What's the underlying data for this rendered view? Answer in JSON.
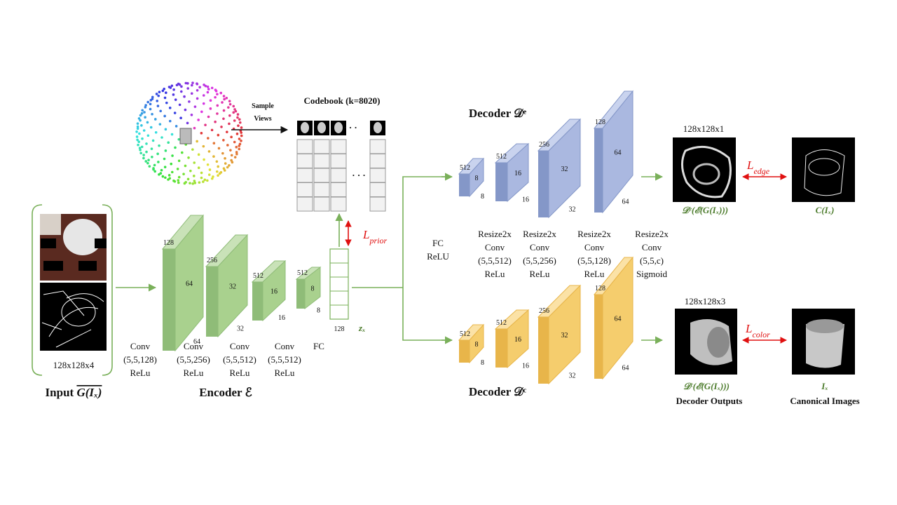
{
  "sampling": {
    "arrow_label": [
      "Sample",
      "Views"
    ]
  },
  "codebook": {
    "title": "Codebook (k=8020)",
    "ellipsis_views": "· · ·",
    "ellipsis_grid": "· · ·"
  },
  "input": {
    "size": "128x128x4",
    "label": "Input",
    "symbol": "G(Iₓ)"
  },
  "encoder": {
    "title": "Encoder ℰ",
    "blocks": [
      {
        "dims": [
          128,
          64,
          64
        ],
        "layer": [
          "Conv",
          "(5,5,128)",
          "ReLu"
        ]
      },
      {
        "dims": [
          256,
          32,
          32
        ],
        "layer": [
          "Conv",
          "(5,5,256)",
          "ReLu"
        ]
      },
      {
        "dims": [
          512,
          16,
          16
        ],
        "layer": [
          "Conv",
          "(5,5,512)",
          "ReLu"
        ]
      },
      {
        "dims": [
          512,
          8,
          8
        ],
        "layer": [
          "Conv",
          "(5,5,512)",
          "ReLu"
        ]
      }
    ],
    "fc": {
      "dim": 128,
      "layer": "FC",
      "latent": "zₓ"
    }
  },
  "prior_loss": {
    "symbol": "L",
    "subscript": "prior"
  },
  "fc_relu": [
    "FC",
    "ReLU"
  ],
  "decoder_layers": [
    [
      "Resize2x",
      "Conv",
      "(5,5,512)",
      "ReLu"
    ],
    [
      "Resize2x",
      "Conv",
      "(5,5,256)",
      "ReLu"
    ],
    [
      "Resize2x",
      "Conv",
      "(5,5,128)",
      "ReLu"
    ],
    [
      "Resize2x",
      "Conv",
      "(5,5,c)",
      "Sigmoid"
    ]
  ],
  "edge_decoder": {
    "title": "Decoder 𝒟ᵉ",
    "blocks": [
      [
        512,
        8,
        8
      ],
      [
        512,
        16,
        16
      ],
      [
        256,
        32,
        32
      ],
      [
        128,
        64,
        64
      ]
    ]
  },
  "color_decoder": {
    "title": "Decoder 𝒟ᶜ",
    "blocks": [
      [
        512,
        8,
        8
      ],
      [
        512,
        16,
        16
      ],
      [
        256,
        32,
        32
      ],
      [
        128,
        64,
        64
      ]
    ]
  },
  "edge_output": {
    "size": "128x128x1",
    "caption": "𝒟ᵉ(ℰ(G(Iₓ)))",
    "loss": {
      "symbol": "L",
      "subscript": "edge"
    },
    "target": "C(Iₓ)"
  },
  "color_output": {
    "size": "128x128x3",
    "caption": "𝒟ᶜ(ℰ(G(Iₓ)))",
    "subcaption": "Decoder Outputs",
    "loss": {
      "symbol": "L",
      "subscript": "color"
    },
    "target": "Iₓ",
    "target_caption": "Canonical Images"
  }
}
